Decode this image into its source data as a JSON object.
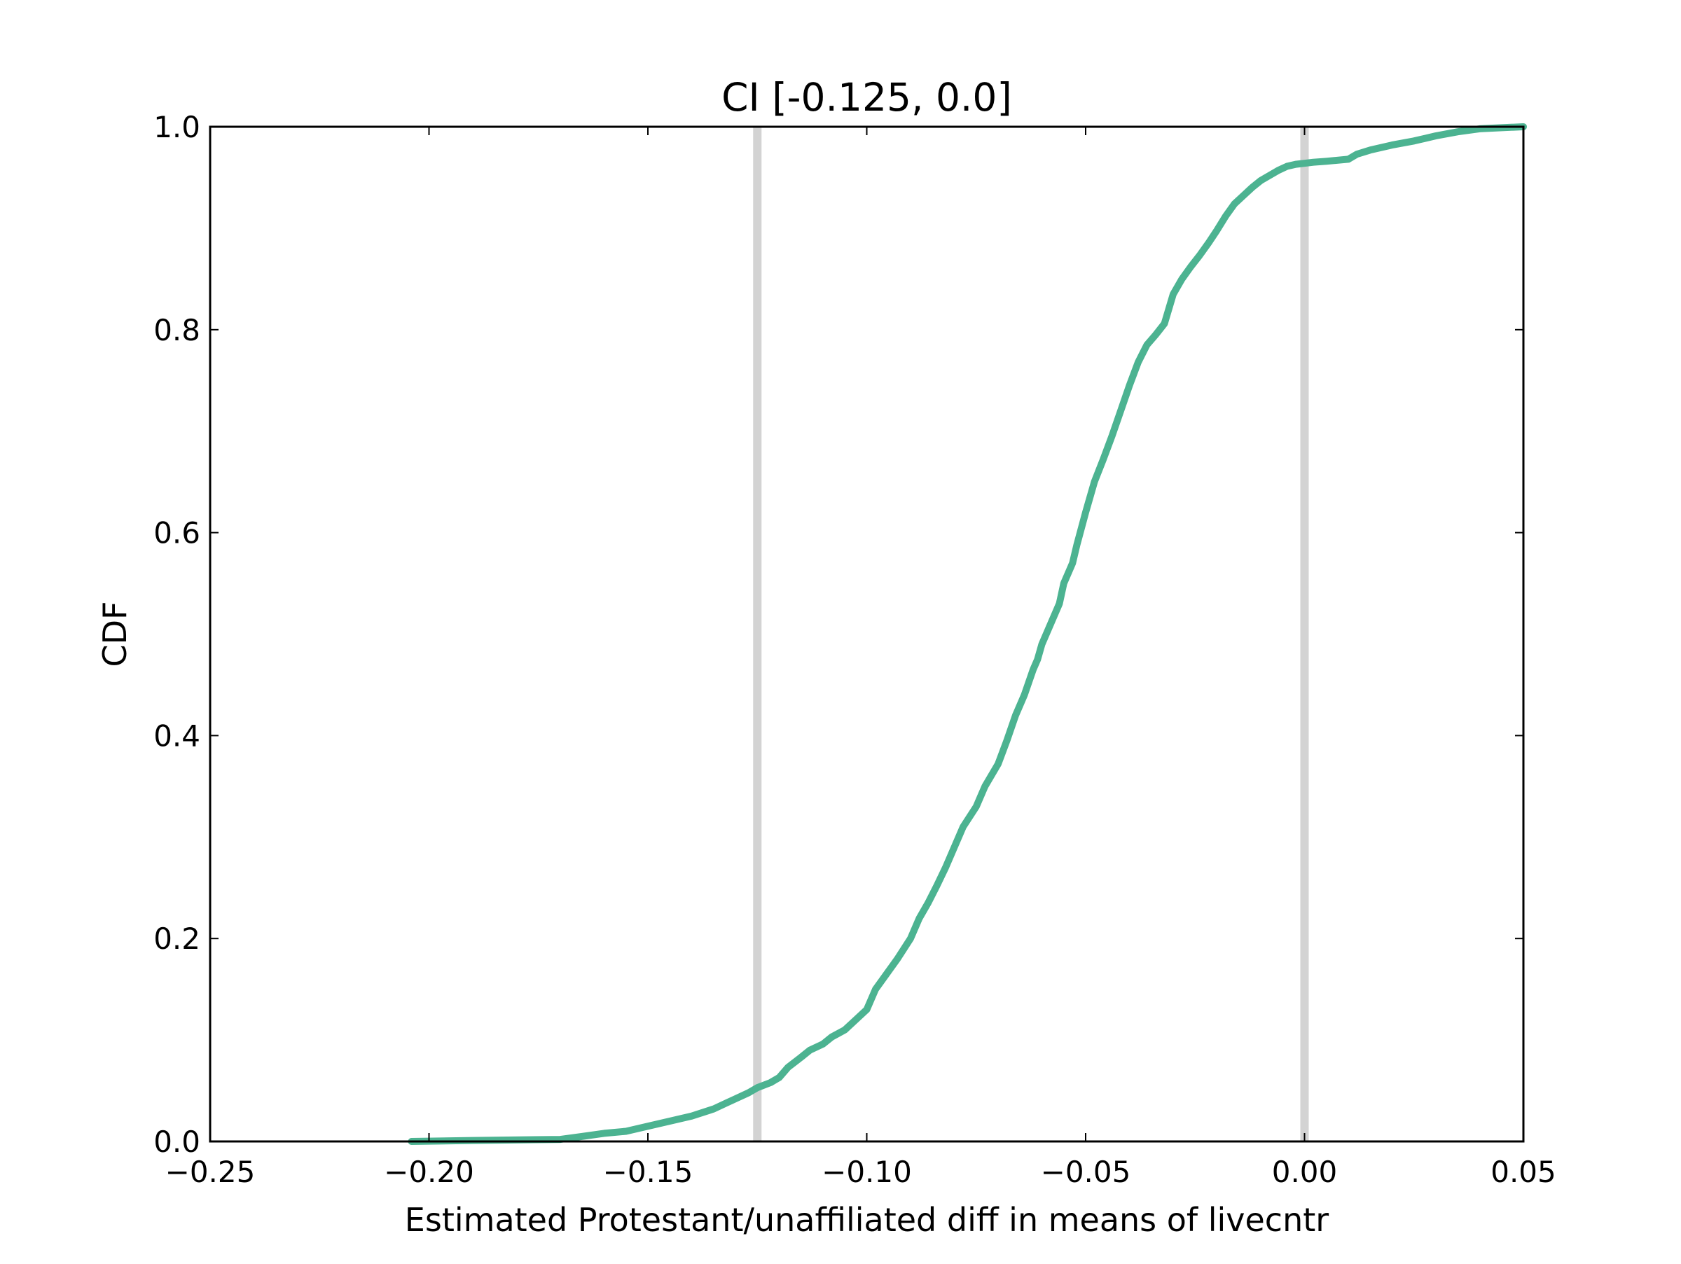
{
  "chart_data": {
    "type": "line",
    "title": "CI [-0.125, 0.0]",
    "xlabel": "Estimated Protestant/unaffiliated diff in means of livecntr",
    "ylabel": "CDF",
    "xlim": [
      -0.25,
      0.05
    ],
    "ylim": [
      0.0,
      1.0
    ],
    "xticks": [
      -0.25,
      -0.2,
      -0.15,
      -0.1,
      -0.05,
      0.0,
      0.05
    ],
    "xtick_labels": [
      "−0.25",
      "−0.20",
      "−0.15",
      "−0.10",
      "−0.05",
      "0.00",
      "0.05"
    ],
    "yticks": [
      0.0,
      0.2,
      0.4,
      0.6,
      0.8,
      1.0
    ],
    "ytick_labels": [
      "0.0",
      "0.2",
      "0.4",
      "0.6",
      "0.8",
      "1.0"
    ],
    "grid": false,
    "legend": "none",
    "colors": {
      "series": "#4cb391",
      "ci_lines": "#d3d3d3",
      "axes": "#000000"
    },
    "vertical_lines": [
      -0.125,
      0.0
    ],
    "series": [
      {
        "x": [
          -0.204,
          -0.19,
          -0.17,
          -0.165,
          -0.16,
          -0.155,
          -0.15,
          -0.145,
          -0.14,
          -0.135,
          -0.132,
          -0.13,
          -0.127,
          -0.125,
          -0.122,
          -0.12,
          -0.118,
          -0.115,
          -0.113,
          -0.11,
          -0.108,
          -0.105,
          -0.103,
          -0.1,
          -0.098,
          -0.095,
          -0.093,
          -0.09,
          -0.088,
          -0.086,
          -0.084,
          -0.082,
          -0.08,
          -0.078,
          -0.075,
          -0.073,
          -0.07,
          -0.068,
          -0.066,
          -0.064,
          -0.062,
          -0.061,
          -0.06,
          -0.058,
          -0.056,
          -0.055,
          -0.053,
          -0.052,
          -0.05,
          -0.048,
          -0.046,
          -0.044,
          -0.042,
          -0.04,
          -0.038,
          -0.036,
          -0.034,
          -0.032,
          -0.03,
          -0.028,
          -0.026,
          -0.024,
          -0.022,
          -0.02,
          -0.018,
          -0.016,
          -0.014,
          -0.012,
          -0.01,
          -0.008,
          -0.006,
          -0.004,
          -0.002,
          0.0,
          0.002,
          0.005,
          0.01,
          0.012,
          0.015,
          0.02,
          0.025,
          0.03,
          0.035,
          0.04,
          0.045,
          0.05
        ],
        "y": [
          0.0,
          0.001,
          0.002,
          0.005,
          0.008,
          0.01,
          0.015,
          0.02,
          0.025,
          0.032,
          0.038,
          0.042,
          0.048,
          0.053,
          0.058,
          0.063,
          0.073,
          0.083,
          0.09,
          0.096,
          0.103,
          0.11,
          0.118,
          0.13,
          0.15,
          0.168,
          0.18,
          0.2,
          0.22,
          0.235,
          0.252,
          0.27,
          0.29,
          0.31,
          0.33,
          0.35,
          0.372,
          0.395,
          0.42,
          0.44,
          0.465,
          0.475,
          0.49,
          0.51,
          0.53,
          0.55,
          0.57,
          0.588,
          0.62,
          0.65,
          0.672,
          0.695,
          0.72,
          0.745,
          0.768,
          0.785,
          0.795,
          0.806,
          0.835,
          0.85,
          0.862,
          0.873,
          0.885,
          0.898,
          0.912,
          0.924,
          0.932,
          0.94,
          0.947,
          0.952,
          0.957,
          0.961,
          0.963,
          0.964,
          0.965,
          0.966,
          0.968,
          0.973,
          0.977,
          0.982,
          0.986,
          0.991,
          0.995,
          0.998,
          0.999,
          1.0
        ]
      }
    ]
  }
}
